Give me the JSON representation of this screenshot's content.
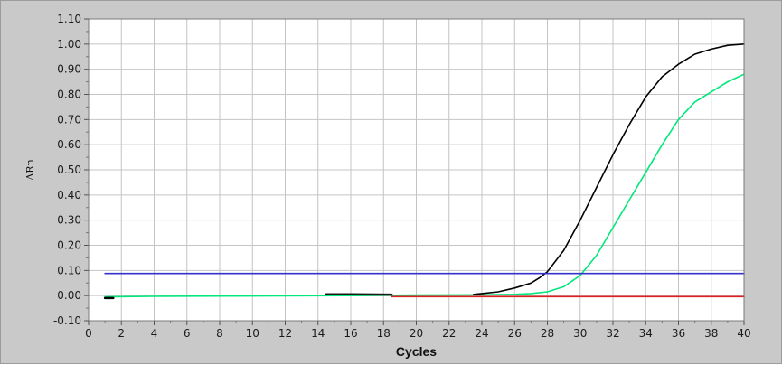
{
  "chart_data": {
    "type": "line",
    "title": "",
    "xlabel": "Cycles",
    "ylabel": "ΔRn",
    "xlim": [
      0,
      40
    ],
    "ylim": [
      -0.1,
      1.1
    ],
    "x_ticks": [
      "0",
      "2",
      "4",
      "6",
      "8",
      "10",
      "12",
      "14",
      "16",
      "18",
      "20",
      "22",
      "24",
      "26",
      "28",
      "30",
      "32",
      "34",
      "36",
      "38",
      "40"
    ],
    "y_ticks": [
      "-0.10",
      "0.00",
      "0.10",
      "0.20",
      "0.30",
      "0.40",
      "0.50",
      "0.60",
      "0.70",
      "0.80",
      "0.90",
      "1.00",
      "1.10"
    ],
    "grid": true,
    "background_color": "#c9c9c9",
    "plot_background": "#ffffff",
    "series": [
      {
        "color": "#00e87a",
        "x": [
          1,
          4,
          8,
          12,
          16,
          20,
          24,
          26,
          27,
          28,
          29,
          30,
          31,
          32,
          33,
          34,
          35,
          36,
          37,
          38,
          39,
          40
        ],
        "y": [
          -0.005,
          -0.003,
          -0.002,
          -0.001,
          0.0,
          0.002,
          0.003,
          0.005,
          0.008,
          0.015,
          0.035,
          0.08,
          0.16,
          0.27,
          0.38,
          0.49,
          0.6,
          0.7,
          0.77,
          0.81,
          0.85,
          0.88
        ]
      },
      {
        "color": "#000000",
        "x": [
          23.5,
          24,
          25,
          26,
          27,
          27.5,
          28,
          29,
          30,
          31,
          32,
          33,
          34,
          35,
          36,
          37,
          38,
          39,
          40
        ],
        "y": [
          0.005,
          0.008,
          0.015,
          0.03,
          0.05,
          0.07,
          0.095,
          0.18,
          0.3,
          0.43,
          0.56,
          0.68,
          0.79,
          0.87,
          0.92,
          0.96,
          0.98,
          0.995,
          1.0
        ]
      },
      {
        "color": "#1a1a1a",
        "x": [
          14.5,
          16,
          18.5
        ],
        "y": [
          0.005,
          0.005,
          0.004
        ]
      },
      {
        "color": "#e02020",
        "x": [
          18.5,
          22,
          26,
          30,
          34,
          38,
          40
        ],
        "y": [
          -0.004,
          -0.004,
          -0.004,
          -0.004,
          -0.004,
          -0.004,
          -0.004
        ]
      },
      {
        "color": "#3333cc",
        "x": [
          1,
          40
        ],
        "y": [
          0.088,
          0.088
        ]
      },
      {
        "color": "#000000",
        "x": [
          1,
          1.5
        ],
        "y": [
          -0.01,
          -0.01
        ]
      }
    ]
  }
}
